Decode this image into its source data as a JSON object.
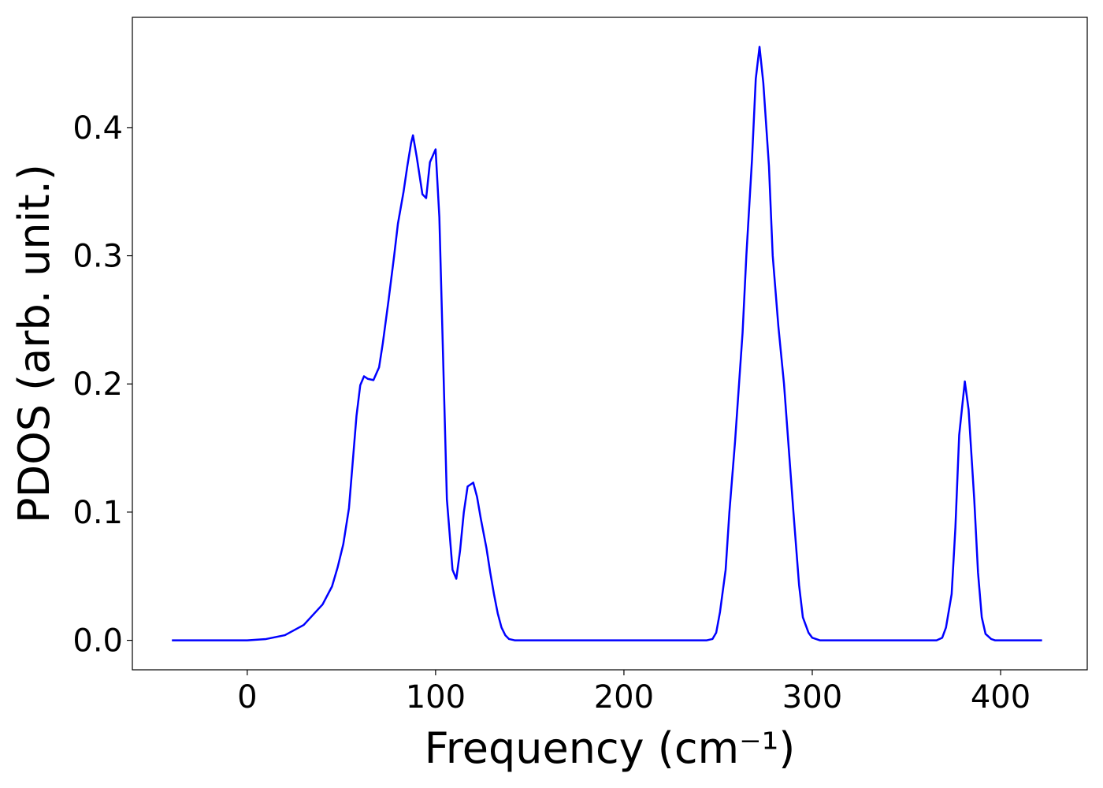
{
  "chart_data": {
    "type": "line",
    "xlabel": "Frequency (cm⁻¹)",
    "ylabel": "PDOS (arb. unit.)",
    "xlim": [
      -61,
      446
    ],
    "ylim": [
      -0.023,
      0.486
    ],
    "xticks": [
      0,
      100,
      200,
      300,
      400
    ],
    "yticks": [
      {
        "value": 0,
        "label": "0.0"
      },
      0.1,
      0.2,
      0.3,
      0.4
    ],
    "grid": false,
    "series": [
      {
        "color": "#0000ff",
        "x": [
          -40,
          0,
          10,
          20,
          30,
          40,
          45,
          48,
          51,
          54,
          58,
          60,
          62,
          64,
          67,
          70,
          72,
          75,
          78,
          80,
          83,
          85,
          87,
          88,
          90,
          93,
          95,
          97,
          100,
          102,
          104,
          106,
          109,
          111,
          113,
          115,
          117,
          120,
          122,
          124,
          127,
          129,
          131,
          133,
          135,
          137,
          139,
          142,
          244,
          247,
          249,
          251,
          254,
          256,
          259,
          263,
          265,
          268,
          270,
          272,
          274,
          277,
          279,
          282,
          285,
          287,
          290,
          293,
          295,
          298,
          300,
          304,
          366,
          369,
          371,
          374,
          376,
          378,
          381,
          383,
          386,
          388,
          390,
          392,
          395,
          397,
          422
        ],
        "values": [
          0,
          0,
          0.001,
          0.004,
          0.012,
          0.028,
          0.042,
          0.057,
          0.075,
          0.103,
          0.175,
          0.199,
          0.206,
          0.204,
          0.203,
          0.213,
          0.232,
          0.265,
          0.3,
          0.325,
          0.35,
          0.37,
          0.388,
          0.394,
          0.377,
          0.348,
          0.345,
          0.373,
          0.383,
          0.33,
          0.22,
          0.11,
          0.055,
          0.048,
          0.07,
          0.1,
          0.12,
          0.123,
          0.112,
          0.095,
          0.072,
          0.053,
          0.036,
          0.021,
          0.01,
          0.004,
          0.001,
          0,
          0,
          0.001,
          0.006,
          0.022,
          0.055,
          0.1,
          0.155,
          0.24,
          0.3,
          0.375,
          0.438,
          0.463,
          0.435,
          0.37,
          0.3,
          0.245,
          0.2,
          0.16,
          0.1,
          0.043,
          0.018,
          0.006,
          0.002,
          0,
          0,
          0.002,
          0.01,
          0.036,
          0.088,
          0.16,
          0.202,
          0.18,
          0.11,
          0.053,
          0.018,
          0.005,
          0.001,
          0,
          0
        ]
      }
    ]
  }
}
